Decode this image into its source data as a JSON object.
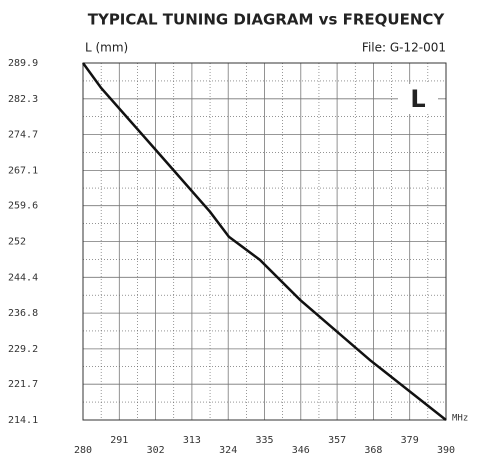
{
  "chart_data": {
    "type": "line",
    "title": "TYPICAL TUNING DIAGRAM vs FREQUENCY",
    "y_label": "L (mm)",
    "x_label": "MHz",
    "annotations": [
      "File:  G-12-001",
      "L"
    ],
    "x": [
      280,
      285.5,
      302.1,
      318.5,
      324.2,
      333.6,
      345.8,
      367.0,
      390
    ],
    "series": [
      {
        "name": "L",
        "color": "#111111",
        "values": [
          289.9,
          284.6,
          271.4,
          258.3,
          253.0,
          248.1,
          239.6,
          226.8,
          214.1
        ]
      }
    ],
    "xlim": [
      280,
      390
    ],
    "xticks": [
      280,
      291,
      302,
      313,
      324,
      335,
      346,
      357,
      368,
      379,
      390
    ],
    "ylim": [
      214.1,
      289.9
    ],
    "yticks": [
      214.1,
      221.7,
      229.2,
      236.8,
      244.4,
      252,
      259.6,
      267.1,
      274.7,
      282.3,
      289.9
    ],
    "grid": true
  }
}
